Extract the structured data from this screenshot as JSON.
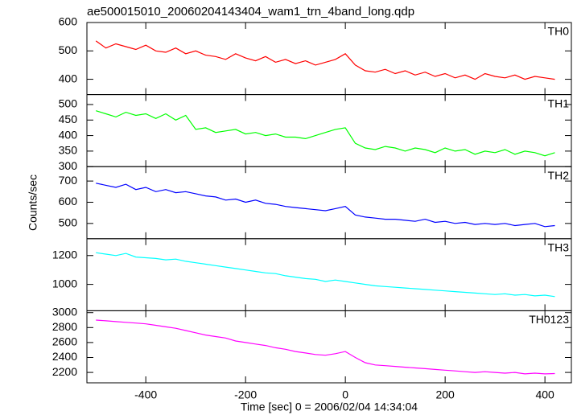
{
  "chart_data": [
    {
      "type": "line",
      "title": "ae500015010_20060204143404_wam1_trn_4band_long.qdp",
      "x": [
        -500,
        -480,
        -460,
        -440,
        -420,
        -400,
        -380,
        -360,
        -340,
        -320,
        -300,
        -280,
        -260,
        -240,
        -220,
        -200,
        -180,
        -160,
        -140,
        -120,
        -100,
        -80,
        -60,
        -40,
        -20,
        0,
        20,
        40,
        60,
        80,
        100,
        120,
        140,
        160,
        180,
        200,
        220,
        240,
        260,
        280,
        300,
        320,
        340,
        360,
        380,
        400,
        420
      ],
      "series": [
        {
          "name": "TH0",
          "color": "#ff0000",
          "values": [
            535,
            510,
            525,
            515,
            505,
            520,
            500,
            495,
            510,
            490,
            500,
            485,
            480,
            470,
            490,
            475,
            465,
            480,
            460,
            470,
            455,
            465,
            450,
            460,
            470,
            490,
            450,
            430,
            425,
            435,
            420,
            430,
            415,
            425,
            410,
            420,
            405,
            415,
            400,
            420,
            410,
            405,
            415,
            400,
            410,
            405,
            400
          ]
        }
      ],
      "xlim": [
        -518,
        453
      ],
      "ylim": [
        346,
        600
      ],
      "yticks": [
        400,
        500,
        600
      ]
    },
    {
      "type": "line",
      "x": [
        -500,
        -480,
        -460,
        -440,
        -420,
        -400,
        -380,
        -360,
        -340,
        -320,
        -300,
        -280,
        -260,
        -240,
        -220,
        -200,
        -180,
        -160,
        -140,
        -120,
        -100,
        -80,
        -60,
        -40,
        -20,
        0,
        20,
        40,
        60,
        80,
        100,
        120,
        140,
        160,
        180,
        200,
        220,
        240,
        260,
        280,
        300,
        320,
        340,
        360,
        380,
        400,
        420
      ],
      "series": [
        {
          "name": "TH1",
          "color": "#00ff00",
          "values": [
            480,
            470,
            460,
            475,
            465,
            470,
            455,
            470,
            450,
            465,
            420,
            425,
            410,
            415,
            420,
            405,
            410,
            400,
            405,
            395,
            395,
            390,
            400,
            410,
            420,
            425,
            375,
            360,
            355,
            365,
            360,
            350,
            360,
            355,
            345,
            360,
            350,
            355,
            340,
            350,
            345,
            355,
            340,
            350,
            345,
            335,
            345
          ]
        }
      ],
      "xlim": [
        -518,
        453
      ],
      "ylim": [
        300,
        532
      ],
      "yticks": [
        300,
        350,
        400,
        450,
        500
      ]
    },
    {
      "type": "line",
      "ylabel": "Counts/sec",
      "x": [
        -500,
        -480,
        -460,
        -440,
        -420,
        -400,
        -380,
        -360,
        -340,
        -320,
        -300,
        -280,
        -260,
        -240,
        -220,
        -200,
        -180,
        -160,
        -140,
        -120,
        -100,
        -80,
        -60,
        -40,
        -20,
        0,
        20,
        40,
        60,
        80,
        100,
        120,
        140,
        160,
        180,
        200,
        220,
        240,
        260,
        280,
        300,
        320,
        340,
        360,
        380,
        400,
        420
      ],
      "series": [
        {
          "name": "TH2",
          "color": "#0000ff",
          "values": [
            690,
            680,
            670,
            685,
            660,
            670,
            650,
            660,
            645,
            650,
            640,
            630,
            625,
            610,
            615,
            600,
            610,
            595,
            590,
            580,
            575,
            570,
            565,
            560,
            570,
            580,
            540,
            530,
            525,
            520,
            520,
            515,
            510,
            520,
            505,
            510,
            500,
            505,
            495,
            500,
            495,
            500,
            490,
            495,
            500,
            485,
            490
          ]
        }
      ],
      "xlim": [
        -518,
        453
      ],
      "ylim": [
        428,
        768
      ],
      "yticks": [
        500,
        600,
        700
      ]
    },
    {
      "type": "line",
      "x": [
        -500,
        -480,
        -460,
        -440,
        -420,
        -400,
        -380,
        -360,
        -340,
        -320,
        -300,
        -280,
        -260,
        -240,
        -220,
        -200,
        -180,
        -160,
        -140,
        -120,
        -100,
        -80,
        -60,
        -40,
        -20,
        0,
        20,
        40,
        60,
        80,
        100,
        120,
        140,
        160,
        180,
        200,
        220,
        240,
        260,
        280,
        300,
        320,
        340,
        360,
        380,
        400,
        420
      ],
      "series": [
        {
          "name": "TH3",
          "color": "#00ffff",
          "values": [
            1220,
            1210,
            1200,
            1215,
            1190,
            1185,
            1180,
            1170,
            1175,
            1160,
            1150,
            1140,
            1130,
            1120,
            1110,
            1100,
            1090,
            1080,
            1075,
            1060,
            1050,
            1040,
            1035,
            1020,
            1030,
            1020,
            1010,
            1000,
            990,
            985,
            980,
            975,
            970,
            965,
            960,
            955,
            950,
            945,
            940,
            935,
            930,
            935,
            925,
            930,
            920,
            925,
            915
          ]
        }
      ],
      "xlim": [
        -518,
        453
      ],
      "ylim": [
        817,
        1317
      ],
      "yticks": [
        1000,
        1200
      ]
    },
    {
      "type": "line",
      "xlabel": "Time [sec] 0 = 2006/02/04 14:34:04",
      "x": [
        -500,
        -480,
        -460,
        -440,
        -420,
        -400,
        -380,
        -360,
        -340,
        -320,
        -300,
        -280,
        -260,
        -240,
        -220,
        -200,
        -180,
        -160,
        -140,
        -120,
        -100,
        -80,
        -60,
        -40,
        -20,
        0,
        20,
        40,
        60,
        80,
        100,
        120,
        140,
        160,
        180,
        200,
        220,
        240,
        260,
        280,
        300,
        320,
        340,
        360,
        380,
        400,
        420
      ],
      "series": [
        {
          "name": "TH0123",
          "color": "#ff00ff",
          "values": [
            2900,
            2890,
            2880,
            2870,
            2860,
            2850,
            2830,
            2810,
            2790,
            2760,
            2730,
            2700,
            2680,
            2660,
            2620,
            2600,
            2580,
            2560,
            2530,
            2510,
            2480,
            2460,
            2440,
            2430,
            2450,
            2480,
            2400,
            2330,
            2300,
            2290,
            2280,
            2270,
            2260,
            2250,
            2240,
            2230,
            2220,
            2210,
            2200,
            2210,
            2200,
            2190,
            2200,
            2180,
            2190,
            2180,
            2185
          ]
        }
      ],
      "xlim": [
        -518,
        453
      ],
      "ylim": [
        2061,
        3025
      ],
      "yticks": [
        2200,
        2400,
        2600,
        2800,
        3000
      ],
      "xticks": [
        -400,
        -200,
        0,
        200,
        400
      ]
    }
  ]
}
